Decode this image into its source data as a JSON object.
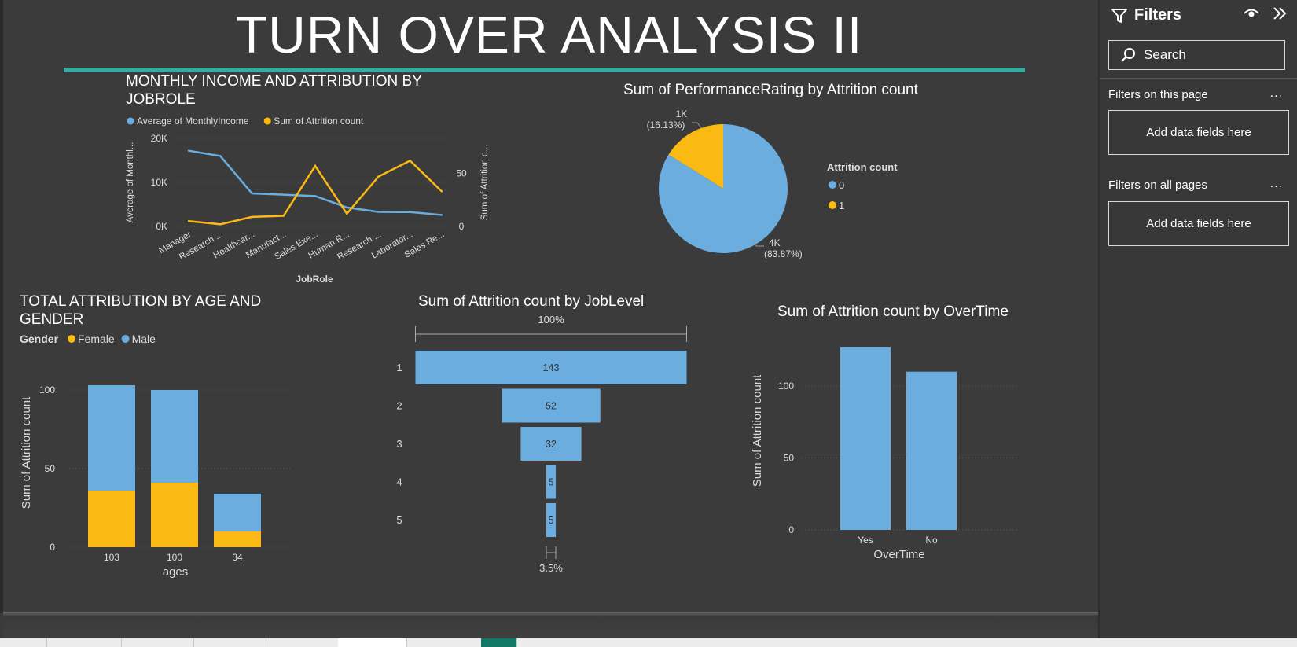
{
  "report": {
    "title": "TURN OVER ANALYSIS II"
  },
  "colors": {
    "blue": "#6badde",
    "yellow": "#fbb913",
    "accent_rule": "#3aa9a0",
    "canvas": "#3b3b3b"
  },
  "filters": {
    "title": "Filters",
    "search_placeholder": "Search",
    "on_this_page": "Filters on this page",
    "on_all_pages": "Filters on all pages",
    "add_fields": "Add data fields here",
    "more": "...",
    "icons": [
      "filter-icon",
      "eye-icon",
      "collapse-icon",
      "search-icon"
    ]
  },
  "chart_data": [
    {
      "id": "income",
      "type": "line",
      "title": "MONTHLY INCOME AND ATTRIBUTION BY JOBROLE",
      "categories": [
        "Manager",
        "Research ...",
        "Healthcar...",
        "Manufact...",
        "Sales Exe...",
        "Human R...",
        "Research ...",
        "Laborator...",
        "Sales Re..."
      ],
      "series": [
        {
          "name": "Average of MonthlyIncome",
          "axis": "left",
          "values": [
            17200,
            16000,
            7500,
            7200,
            6900,
            4300,
            3300,
            3250,
            2600
          ]
        },
        {
          "name": "Sum of Attrition count",
          "axis": "right",
          "values": [
            5,
            2,
            9,
            10,
            57,
            12,
            47,
            62,
            33
          ]
        }
      ],
      "xlabel": "JobRole",
      "ylabel": "Average of Monthl...",
      "y2label": "Sum of Attrition c...",
      "ylim": [
        0,
        20000
      ],
      "yticks": [
        "0K",
        "10K",
        "20K"
      ],
      "y2lim": [
        0,
        83
      ],
      "y2ticks": [
        "0",
        "50"
      ],
      "legend": "top-left"
    },
    {
      "id": "pie",
      "type": "pie",
      "title": "Sum of PerformanceRating by Attrition count",
      "legend_title": "Attrition count",
      "slices": [
        {
          "name": "0",
          "value": 83.87,
          "label": "4K",
          "pct": "(83.87%)"
        },
        {
          "name": "1",
          "value": 16.13,
          "label": "1K",
          "pct": "(16.13%)"
        }
      ],
      "legend": "right"
    },
    {
      "id": "age",
      "type": "bar",
      "stacked": true,
      "title": "TOTAL ATTRIBUTION BY AGE AND GENDER",
      "legend_title": "Gender",
      "categories": [
        "103",
        "100",
        "34"
      ],
      "series": [
        {
          "name": "Female",
          "values": [
            36,
            41,
            10
          ]
        },
        {
          "name": "Male",
          "values": [
            67,
            59,
            24
          ]
        }
      ],
      "xlabel": "ages",
      "ylabel": "Sum of Attrition count",
      "ylim": [
        0,
        110
      ],
      "yticks": [
        "0",
        "50",
        "100"
      ],
      "legend": "top-left"
    },
    {
      "id": "funnel",
      "type": "bar",
      "subtype": "funnel",
      "title": "Sum of Attrition count by JobLevel",
      "categories": [
        "1",
        "2",
        "3",
        "4",
        "5"
      ],
      "values": [
        143,
        52,
        32,
        5,
        5
      ],
      "top_label": "100%",
      "bottom_label": "3.5%"
    },
    {
      "id": "overtime",
      "type": "bar",
      "title": "Sum of Attrition count by OverTime",
      "categories": [
        "Yes",
        "No"
      ],
      "values": [
        127,
        110
      ],
      "xlabel": "OverTime",
      "ylabel": "Sum of Attrition count",
      "ylim": [
        0,
        140
      ],
      "yticks": [
        "0",
        "50",
        "100"
      ]
    }
  ]
}
